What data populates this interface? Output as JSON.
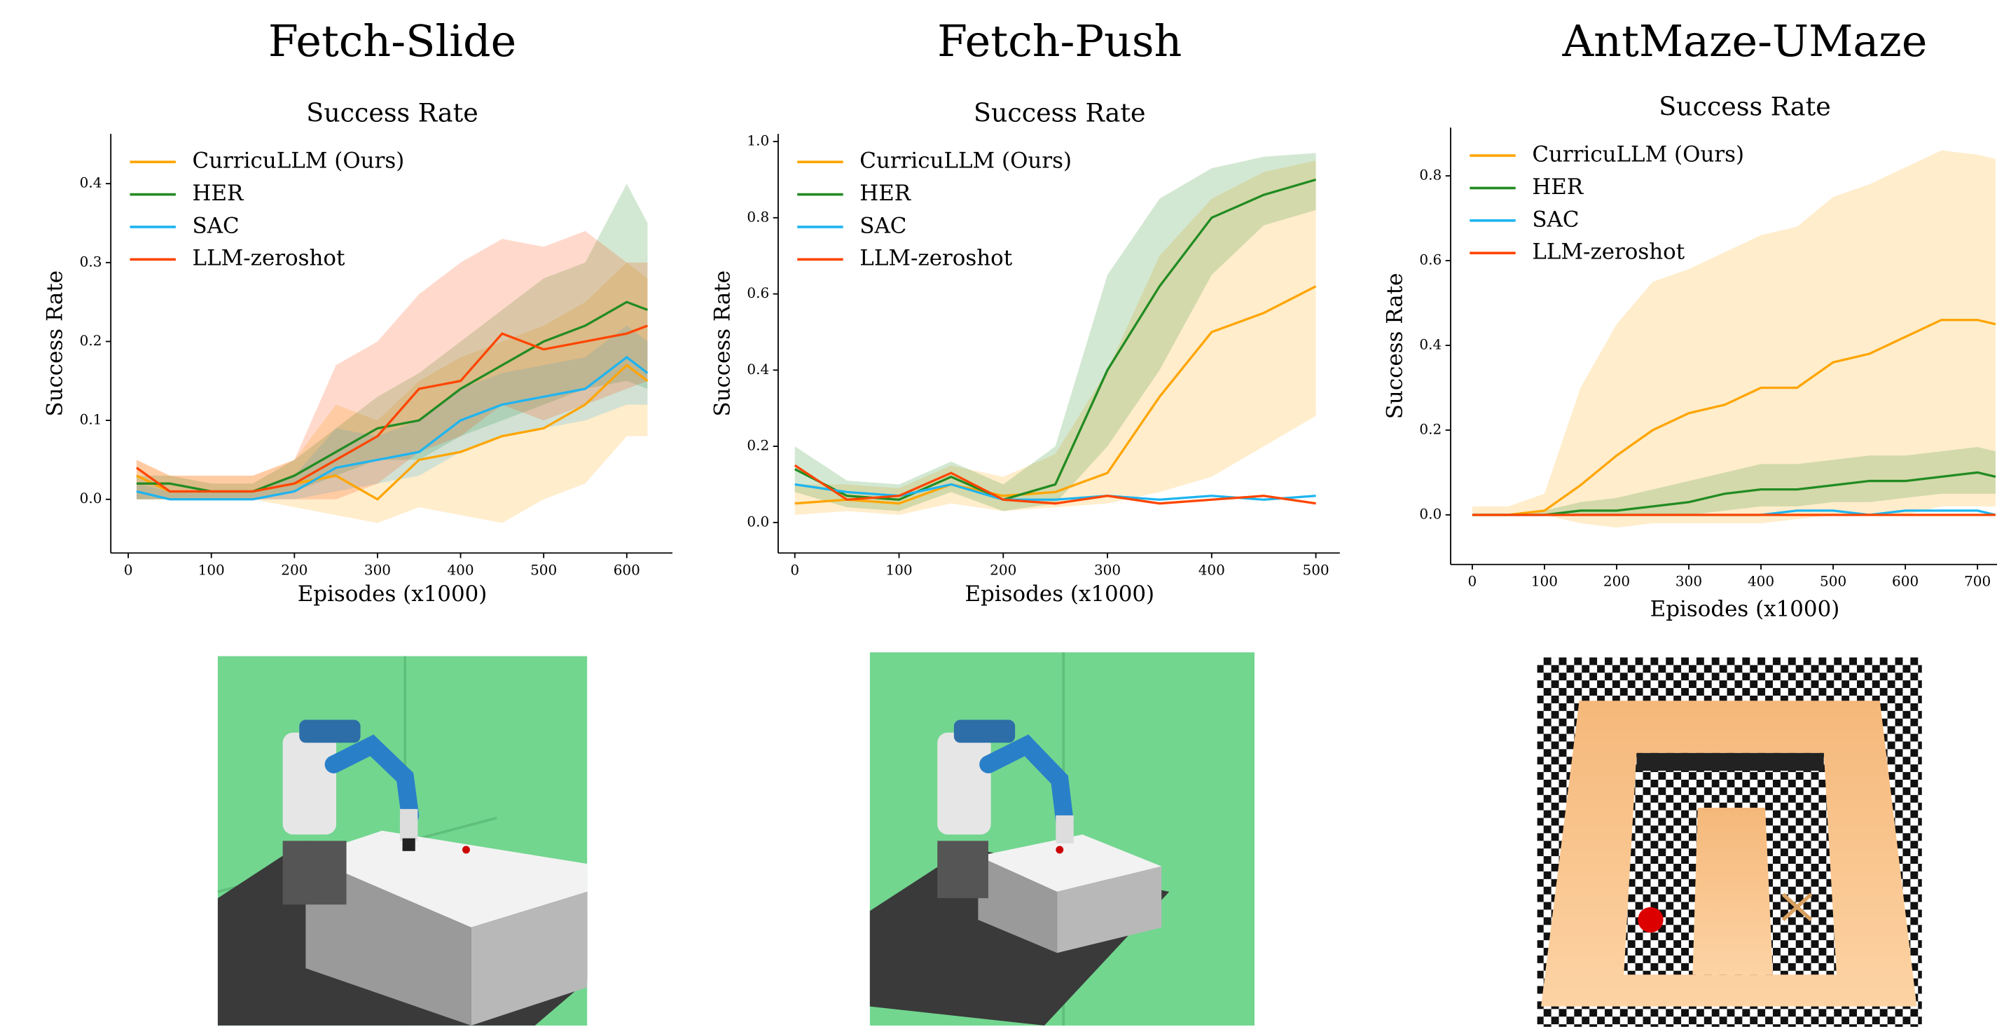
{
  "chart_data": [
    {
      "type": "line",
      "title": "Fetch-Slide",
      "subtitle": "Success Rate",
      "x_label": "Episodes (x1000)",
      "y_label": "Success Rate",
      "legend": "upper left",
      "xlim": [
        -21,
        655
      ],
      "ylim": [
        -0.068,
        0.463
      ],
      "xticks": [
        0,
        100,
        200,
        300,
        400,
        500,
        600
      ],
      "yticks": [
        {
          "value": 0,
          "label": "0.0"
        },
        0.1,
        0.2,
        0.3,
        0.4
      ],
      "x": [
        10,
        50,
        100,
        150,
        200,
        250,
        300,
        350,
        400,
        450,
        500,
        550,
        600,
        625
      ],
      "series": [
        {
          "name": "CurricuLLM (Ours)",
          "color": "#ffa500",
          "values": [
            0.03,
            0.01,
            0.01,
            0.01,
            0.02,
            0.03,
            0.0,
            0.05,
            0.06,
            0.08,
            0.09,
            0.12,
            0.17,
            0.15
          ],
          "lower": [
            0.0,
            0.0,
            0.0,
            0.0,
            -0.01,
            -0.02,
            -0.03,
            -0.01,
            -0.02,
            -0.03,
            0.0,
            0.02,
            0.08,
            0.08
          ],
          "upper": [
            0.05,
            0.03,
            0.03,
            0.03,
            0.05,
            0.12,
            0.1,
            0.15,
            0.18,
            0.2,
            0.22,
            0.25,
            0.3,
            0.28
          ]
        },
        {
          "name": "HER",
          "color": "#228b22",
          "values": [
            0.02,
            0.02,
            0.01,
            0.01,
            0.03,
            0.06,
            0.09,
            0.1,
            0.14,
            0.17,
            0.2,
            0.22,
            0.25,
            0.24
          ],
          "lower": [
            0.0,
            0.0,
            0.0,
            0.0,
            0.01,
            0.03,
            0.05,
            0.05,
            0.08,
            0.1,
            0.12,
            0.14,
            0.15,
            0.14
          ],
          "upper": [
            0.03,
            0.03,
            0.02,
            0.02,
            0.05,
            0.09,
            0.13,
            0.16,
            0.2,
            0.24,
            0.28,
            0.3,
            0.4,
            0.35
          ]
        },
        {
          "name": "SAC",
          "color": "#1eb4f0",
          "values": [
            0.01,
            0.0,
            0.0,
            0.0,
            0.01,
            0.04,
            0.05,
            0.06,
            0.1,
            0.12,
            0.13,
            0.14,
            0.18,
            0.16
          ],
          "lower": [
            0.0,
            0.0,
            0.0,
            0.0,
            0.0,
            0.01,
            0.02,
            0.03,
            0.06,
            0.08,
            0.09,
            0.1,
            0.12,
            0.12
          ],
          "upper": [
            0.02,
            0.01,
            0.01,
            0.01,
            0.03,
            0.09,
            0.08,
            0.1,
            0.14,
            0.16,
            0.17,
            0.18,
            0.22,
            0.2
          ]
        },
        {
          "name": "LLM-zeroshot",
          "color": "#ff4500",
          "values": [
            0.04,
            0.01,
            0.01,
            0.01,
            0.02,
            0.05,
            0.08,
            0.14,
            0.15,
            0.21,
            0.19,
            0.2,
            0.21,
            0.22
          ],
          "lower": [
            0.0,
            0.0,
            0.0,
            0.0,
            0.0,
            0.0,
            0.02,
            0.06,
            0.08,
            0.12,
            0.1,
            0.12,
            0.14,
            0.15
          ],
          "upper": [
            0.05,
            0.03,
            0.03,
            0.03,
            0.05,
            0.17,
            0.2,
            0.26,
            0.3,
            0.33,
            0.32,
            0.34,
            0.3,
            0.3
          ]
        }
      ]
    },
    {
      "type": "line",
      "title": "Fetch-Push",
      "subtitle": "Success Rate",
      "x_label": "Episodes (x1000)",
      "y_label": "Success Rate",
      "legend": "upper left",
      "xlim": [
        -16,
        523
      ],
      "ylim": [
        -0.08,
        1.02
      ],
      "xticks": [
        0,
        100,
        200,
        300,
        400,
        500
      ],
      "yticks": [
        {
          "value": 0,
          "label": "0.0"
        },
        0.2,
        0.4,
        0.6,
        0.8,
        {
          "value": 1,
          "label": "1.0"
        }
      ],
      "x": [
        0,
        50,
        100,
        150,
        200,
        250,
        300,
        350,
        400,
        450,
        500
      ],
      "series": [
        {
          "name": "CurricuLLM (Ours)",
          "color": "#ffa500",
          "values": [
            0.05,
            0.06,
            0.05,
            0.1,
            0.07,
            0.08,
            0.13,
            0.33,
            0.5,
            0.55,
            0.62
          ],
          "lower": [
            0.02,
            0.03,
            0.02,
            0.05,
            0.03,
            0.04,
            0.05,
            0.08,
            0.12,
            0.2,
            0.28
          ],
          "upper": [
            0.1,
            0.1,
            0.09,
            0.15,
            0.12,
            0.18,
            0.4,
            0.7,
            0.85,
            0.92,
            0.95
          ]
        },
        {
          "name": "HER",
          "color": "#228b22",
          "values": [
            0.14,
            0.07,
            0.06,
            0.12,
            0.06,
            0.1,
            0.4,
            0.62,
            0.8,
            0.86,
            0.9
          ],
          "lower": [
            0.08,
            0.04,
            0.03,
            0.08,
            0.03,
            0.05,
            0.2,
            0.4,
            0.65,
            0.78,
            0.82
          ],
          "upper": [
            0.2,
            0.11,
            0.1,
            0.16,
            0.1,
            0.2,
            0.65,
            0.85,
            0.93,
            0.96,
            0.97
          ]
        },
        {
          "name": "SAC",
          "color": "#1eb4f0",
          "values": [
            0.1,
            0.08,
            0.07,
            0.1,
            0.06,
            0.06,
            0.07,
            0.06,
            0.07,
            0.06,
            0.07
          ]
        },
        {
          "name": "LLM-zeroshot",
          "color": "#ff4500",
          "values": [
            0.15,
            0.06,
            0.07,
            0.13,
            0.06,
            0.05,
            0.07,
            0.05,
            0.06,
            0.07,
            0.05
          ]
        }
      ]
    },
    {
      "type": "line",
      "title": "AntMaze-UMaze",
      "subtitle": "Success Rate",
      "x_label": "Episodes (x1000)",
      "y_label": "Success Rate",
      "legend": "upper left",
      "xlim": [
        -30,
        727
      ],
      "ylim": [
        -0.117,
        0.914
      ],
      "xticks": [
        0,
        100,
        200,
        300,
        400,
        500,
        600,
        700
      ],
      "yticks": [
        {
          "value": 0,
          "label": "0.0"
        },
        0.2,
        0.4,
        0.6,
        0.8
      ],
      "x": [
        0,
        50,
        100,
        150,
        200,
        250,
        300,
        350,
        400,
        450,
        500,
        550,
        600,
        650,
        700,
        725
      ],
      "series": [
        {
          "name": "CurricuLLM (Ours)",
          "color": "#ffa500",
          "values": [
            0.0,
            0.0,
            0.01,
            0.07,
            0.14,
            0.2,
            0.24,
            0.26,
            0.3,
            0.3,
            0.36,
            0.38,
            0.42,
            0.46,
            0.46,
            0.45
          ],
          "lower": [
            0.0,
            0.0,
            0.0,
            -0.02,
            -0.03,
            -0.02,
            -0.02,
            -0.02,
            -0.02,
            -0.01,
            0.0,
            0.0,
            0.0,
            0.02,
            0.02,
            0.02
          ],
          "upper": [
            0.02,
            0.02,
            0.05,
            0.3,
            0.45,
            0.55,
            0.58,
            0.62,
            0.66,
            0.68,
            0.75,
            0.78,
            0.82,
            0.86,
            0.85,
            0.84
          ]
        },
        {
          "name": "HER",
          "color": "#228b22",
          "values": [
            0.0,
            0.0,
            0.0,
            0.01,
            0.01,
            0.02,
            0.03,
            0.05,
            0.06,
            0.06,
            0.07,
            0.08,
            0.08,
            0.09,
            0.1,
            0.09
          ],
          "lower": [
            0.0,
            0.0,
            0.0,
            0.0,
            0.0,
            0.0,
            0.0,
            0.01,
            0.02,
            0.02,
            0.03,
            0.03,
            0.04,
            0.05,
            0.05,
            0.05
          ],
          "upper": [
            0.0,
            0.0,
            0.01,
            0.03,
            0.04,
            0.06,
            0.08,
            0.1,
            0.12,
            0.12,
            0.13,
            0.14,
            0.14,
            0.15,
            0.16,
            0.15
          ]
        },
        {
          "name": "SAC",
          "color": "#1eb4f0",
          "values": [
            0.0,
            0.0,
            0.0,
            0.0,
            0.0,
            0.0,
            0.0,
            0.0,
            0.0,
            0.01,
            0.01,
            0.0,
            0.01,
            0.01,
            0.01,
            0.0
          ]
        },
        {
          "name": "LLM-zeroshot",
          "color": "#ff4500",
          "values": [
            0,
            0,
            0,
            0,
            0,
            0,
            0,
            0,
            0,
            0,
            0,
            0,
            0,
            0,
            0,
            0
          ]
        }
      ]
    }
  ]
}
